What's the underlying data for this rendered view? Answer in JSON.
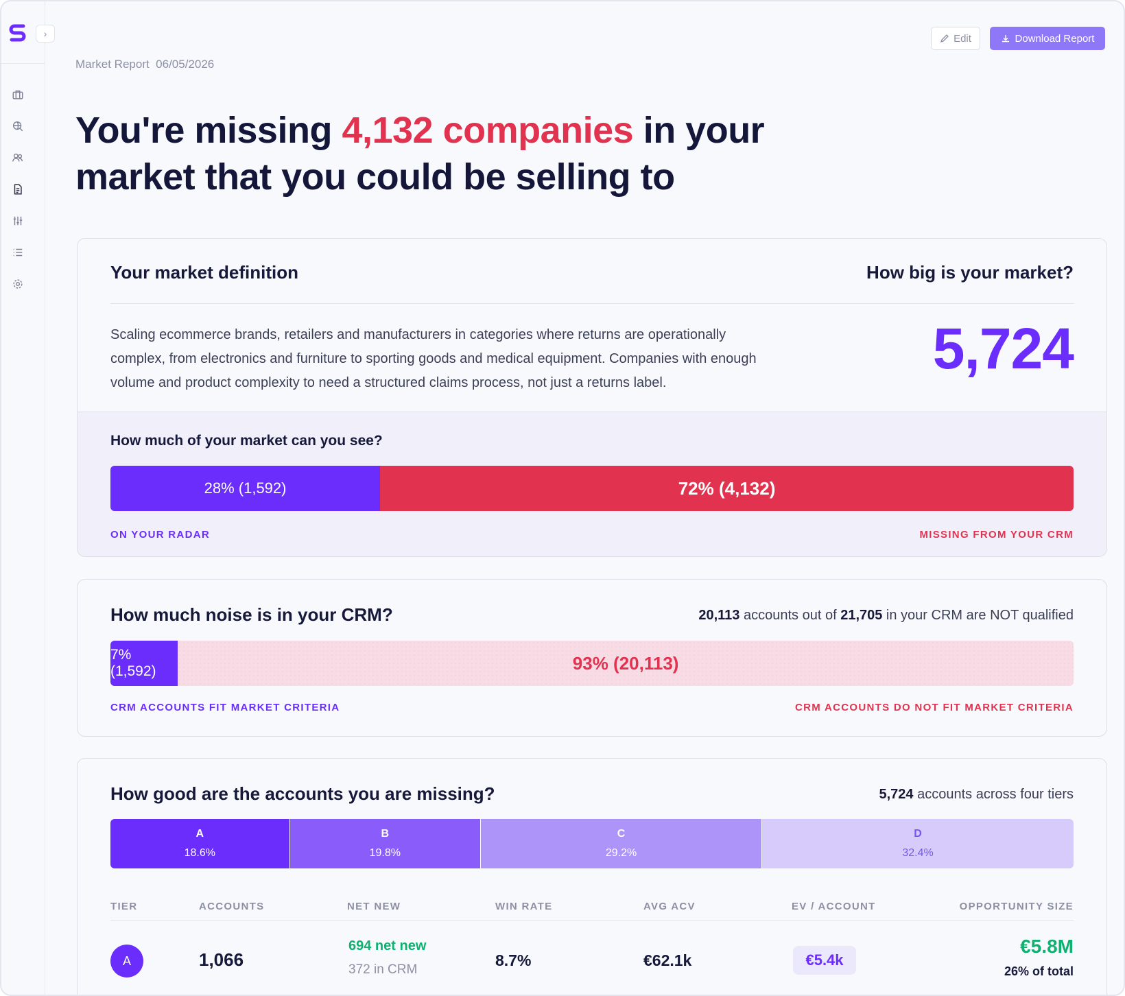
{
  "header": {
    "report_label": "Market Report",
    "report_date": "06/05/2026",
    "edit_label": "Edit",
    "download_label": "Download Report"
  },
  "hero": {
    "prefix": "You're missing ",
    "highlight": "4,132 companies",
    "suffix": " in your market that you could be selling to"
  },
  "market": {
    "title": "Your market definition",
    "size_title": "How big is your market?",
    "definition": "Scaling ecommerce brands, retailers and manufacturers in categories where returns are operationally complex, from electronics and furniture to sporting goods and medical equipment. Companies with enough volume and product complexity to need a structured claims process, not just a returns label.",
    "size_value": "5,724"
  },
  "visibility": {
    "title": "How much of your market can you see?",
    "see_fraction": 0.28,
    "see_label": "28% (1,592)",
    "miss_label": "72% (4,132)",
    "see_caption": "ON YOUR RADAR",
    "miss_caption": "MISSING FROM YOUR CRM"
  },
  "noise": {
    "title": "How much noise is in your CRM?",
    "summary_unqualified": "20,113",
    "summary_mid": " accounts out of ",
    "summary_total": "21,705",
    "summary_end": " in your CRM are NOT qualified",
    "fit_fraction": 0.07,
    "fit_label": "7% (1,592)",
    "nofit_label": "93% (20,113)",
    "fit_caption": "CRM ACCOUNTS FIT MARKET CRITERIA",
    "nofit_caption": "CRM ACCOUNTS DO NOT FIT MARKET CRITERIA"
  },
  "tiers": {
    "title": "How good are the accounts you are missing?",
    "summary_count": "5,724",
    "summary_text": " accounts across four tiers",
    "segments": [
      {
        "letter": "A",
        "pct": "18.6%",
        "fraction": 0.186,
        "bg": "#6a2dfc",
        "fg": "#ffffff"
      },
      {
        "letter": "B",
        "pct": "19.8%",
        "fraction": 0.198,
        "bg": "#8a5cf9",
        "fg": "#ffffff"
      },
      {
        "letter": "C",
        "pct": "29.2%",
        "fraction": 0.292,
        "bg": "#ac94f8",
        "fg": "#ffffff"
      },
      {
        "letter": "D",
        "pct": "32.4%",
        "fraction": 0.324,
        "bg": "#d6cbfa",
        "fg": "#7a56f0"
      }
    ],
    "columns": [
      "TIER",
      "ACCOUNTS",
      "NET NEW",
      "WIN RATE",
      "AVG ACV",
      "EV / ACCOUNT",
      "OPPORTUNITY SIZE"
    ],
    "rows": [
      {
        "tier": "A",
        "accounts": "1,066",
        "net_new": "694 net new",
        "in_crm": "372 in CRM",
        "win_rate": "8.7%",
        "avg_acv": "€62.1k",
        "ev_account": "€5.4k",
        "opportunity": "€5.8M",
        "opportunity_share": "26% of total"
      }
    ]
  }
}
